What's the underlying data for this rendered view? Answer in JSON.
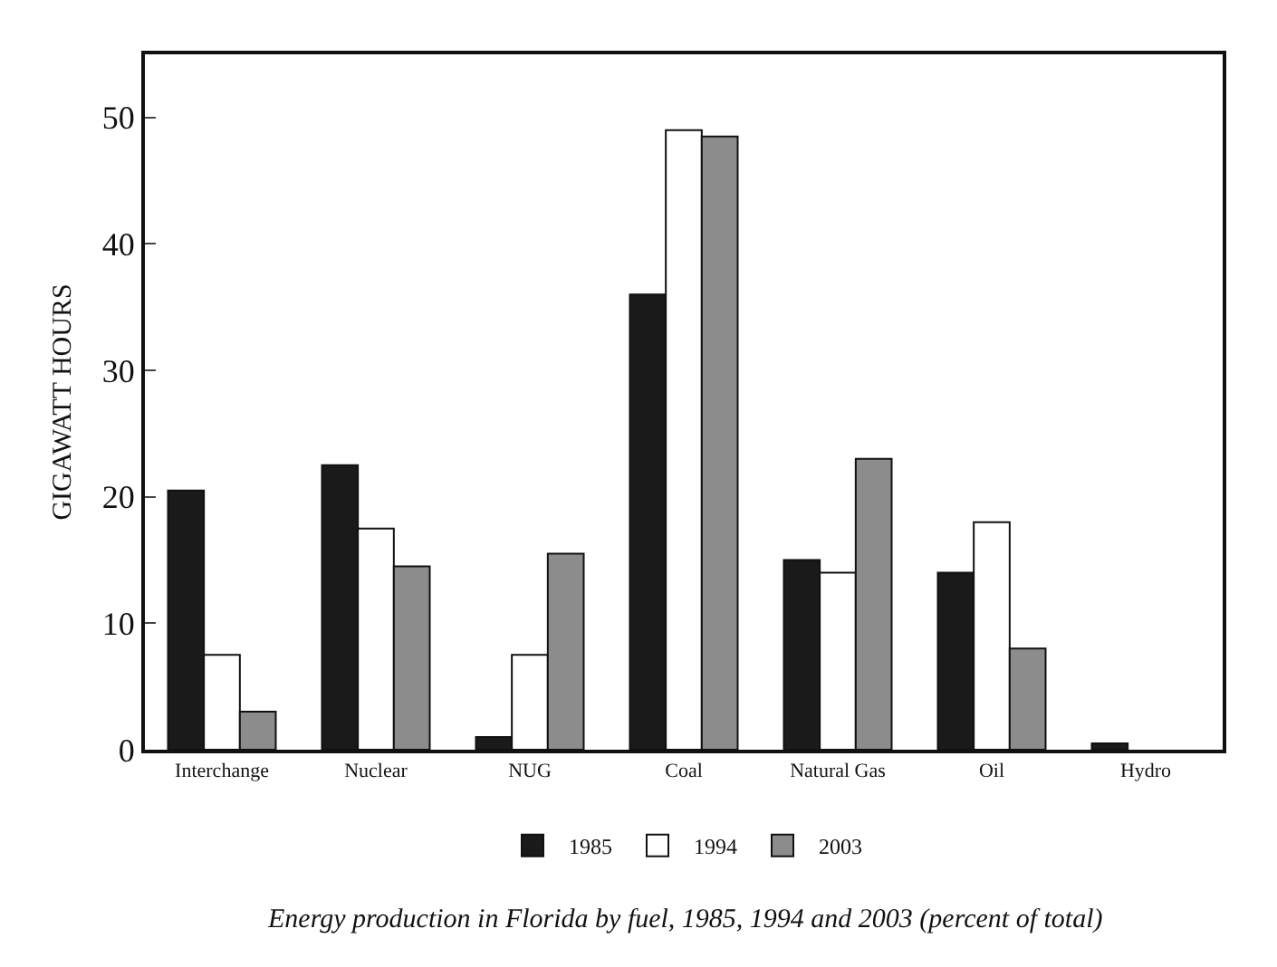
{
  "chart_data": {
    "type": "bar",
    "title": "Energy production in Florida by fuel, 1985, 1994 and 2003 (percent of total)",
    "ylabel": "GIGAWATT HOURS",
    "categories": [
      "Interchange",
      "Nuclear",
      "NUG",
      "Coal",
      "Natural Gas",
      "Oil",
      "Hydro"
    ],
    "series": [
      {
        "name": "1985",
        "color": "#1a1a1a",
        "values": [
          20.5,
          22.5,
          1,
          36,
          15,
          14,
          0.5
        ]
      },
      {
        "name": "1994",
        "color": "#ffffff",
        "values": [
          7.5,
          17.5,
          7.5,
          49,
          14,
          18,
          null
        ]
      },
      {
        "name": "2003",
        "color": "#8c8c8c",
        "values": [
          3,
          14.5,
          15.5,
          48.5,
          23,
          8,
          null
        ]
      }
    ],
    "ylim": [
      0,
      55
    ],
    "yticks": [
      0,
      10,
      20,
      30,
      40,
      50
    ],
    "grid": false,
    "legend": "bottom"
  }
}
